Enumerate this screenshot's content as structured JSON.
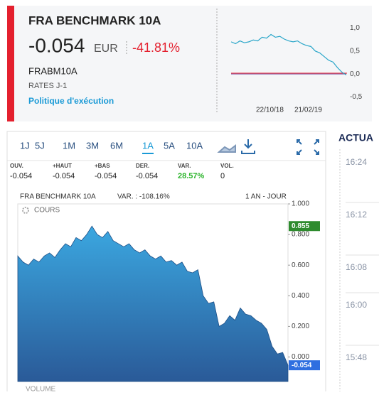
{
  "header": {
    "title": "FRA BENCHMARK 10A",
    "price": "-0.054",
    "currency": "EUR",
    "change": "-41.81%",
    "symbol": "FRABM10A",
    "market": "RATES J-1",
    "link": "Politique d'exécution"
  },
  "mini_chart": {
    "type": "line",
    "values": [
      0.7,
      0.66,
      0.72,
      0.68,
      0.7,
      0.74,
      0.72,
      0.8,
      0.78,
      0.86,
      0.8,
      0.82,
      0.76,
      0.72,
      0.7,
      0.72,
      0.66,
      0.62,
      0.6,
      0.5,
      0.46,
      0.38,
      0.3,
      0.26,
      0.14,
      0.04,
      -0.02
    ],
    "ylim": [
      -0.6,
      1.1
    ],
    "yticks": [
      {
        "value": 1,
        "label": "1,0"
      },
      {
        "value": 0.5,
        "label": "0,5"
      },
      {
        "value": 0,
        "label": "0,0"
      },
      {
        "value": -0.5,
        "label": "-0,5"
      }
    ],
    "x_labels": [
      "22/10/18",
      "21/02/19"
    ]
  },
  "periods": [
    "1J",
    "5J",
    "1M",
    "3M",
    "6M",
    "1A",
    "5A",
    "10A"
  ],
  "active_period": 5,
  "stats": [
    {
      "label": "OUV.",
      "value": "-0.054"
    },
    {
      "label": "+HAUT",
      "value": "-0.054"
    },
    {
      "label": "+BAS",
      "value": "-0.054"
    },
    {
      "label": "DER.",
      "value": "-0.054"
    },
    {
      "label": "VAR.",
      "value": "28.57%"
    },
    {
      "label": "VOL.",
      "value": "0"
    }
  ],
  "main_chart": {
    "type": "area",
    "title": "FRA BENCHMARK 10A",
    "variation": "VAR. : -108.16%",
    "range": "1 AN - JOUR",
    "legend": "COURS",
    "volume_legend": "VOLUME",
    "values": [
      0.66,
      0.62,
      0.6,
      0.64,
      0.62,
      0.66,
      0.68,
      0.65,
      0.7,
      0.74,
      0.72,
      0.78,
      0.76,
      0.8,
      0.855,
      0.8,
      0.78,
      0.82,
      0.76,
      0.74,
      0.72,
      0.74,
      0.7,
      0.68,
      0.7,
      0.66,
      0.64,
      0.66,
      0.62,
      0.63,
      0.6,
      0.62,
      0.56,
      0.55,
      0.57,
      0.4,
      0.35,
      0.36,
      0.2,
      0.22,
      0.27,
      0.24,
      0.32,
      0.28,
      0.27,
      0.24,
      0.22,
      0.18,
      0.07,
      0.02,
      0.03,
      -0.054
    ],
    "ylim": [
      -0.16,
      1.0
    ],
    "yticks": [
      {
        "value": 1,
        "label": "1.000"
      },
      {
        "value": 0.8,
        "label": "0.800"
      },
      {
        "value": 0.6,
        "label": "0.600"
      },
      {
        "value": 0.4,
        "label": "0.400"
      },
      {
        "value": 0.2,
        "label": "0.200"
      },
      {
        "value": 0,
        "label": "0.000"
      }
    ],
    "markers": [
      {
        "value": 0.855,
        "color": "#2e8b2e"
      },
      {
        "value": -0.054,
        "color": "#2f6fe0"
      }
    ]
  },
  "news": {
    "title": "ACTUA",
    "times": [
      "16:24",
      "16:12",
      "16:08",
      "16:00",
      "15:48"
    ]
  }
}
